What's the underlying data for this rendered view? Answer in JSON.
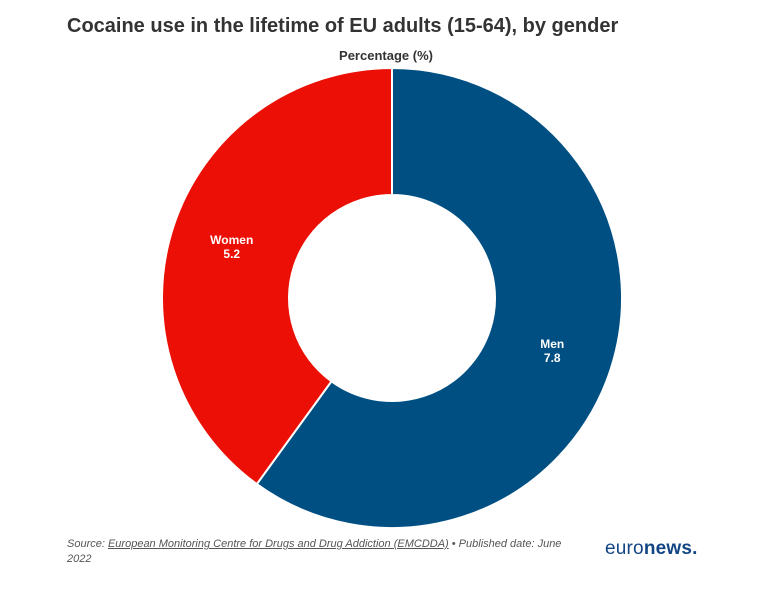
{
  "chart_data": {
    "type": "pie",
    "title": "Cocaine use in the lifetime of EU adults (15-64), by gender",
    "subtitle": "Percentage (%)",
    "slices": [
      {
        "label": "Men",
        "value": 7.8,
        "color": "#004f82"
      },
      {
        "label": "Women",
        "value": 5.2,
        "color": "#eb0f05"
      }
    ]
  },
  "footer": {
    "source_prefix": "Source: ",
    "source_link": "European Monitoring Centre for Drugs and Drug Addiction (EMCDDA)",
    "published": " • Published date: June 2022"
  },
  "brand": {
    "part1": "euro",
    "part2": "news."
  },
  "colors": {
    "title": "#333333",
    "brand": "#124584"
  }
}
